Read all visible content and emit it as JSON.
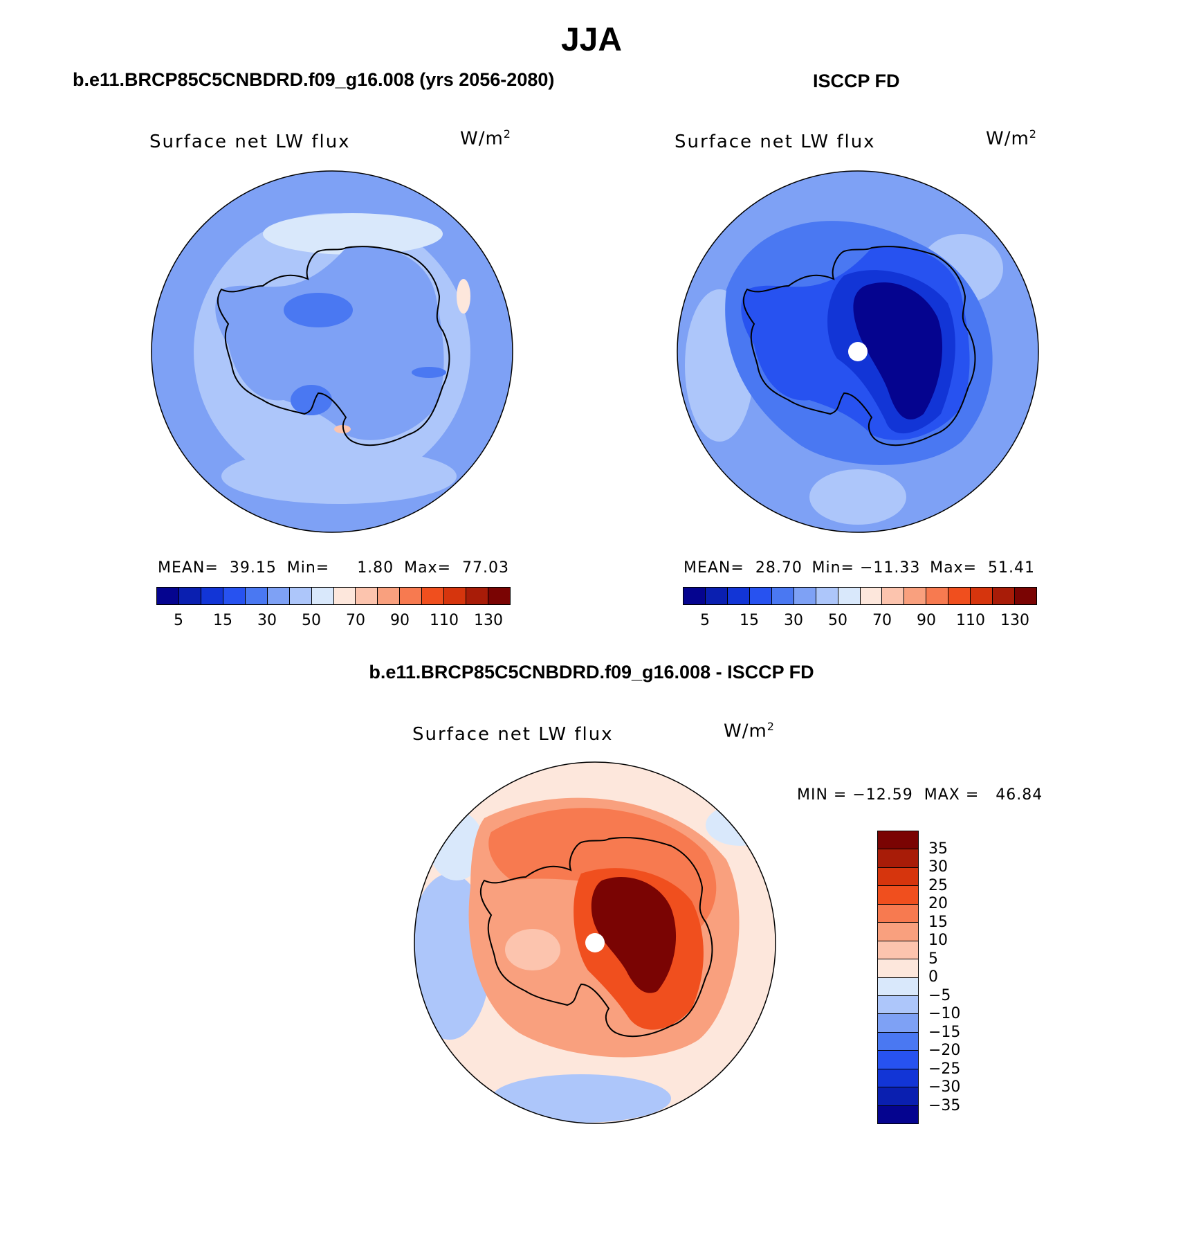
{
  "page_title": "JJA",
  "colors": {
    "scale16": [
      "#05048f",
      "#0a1fb0",
      "#1235d6",
      "#2752f0",
      "#4a78f2",
      "#7ea1f5",
      "#adc6fa",
      "#d9e8fb",
      "#fde7dc",
      "#fcc4ae",
      "#f9a07e",
      "#f77a50",
      "#f04f1e",
      "#d6350d",
      "#a81c08",
      "#7a0403"
    ],
    "diff16": [
      "#05048f",
      "#0a1fb0",
      "#1235d6",
      "#2752f0",
      "#4a78f2",
      "#7ea1f5",
      "#adc6fa",
      "#d9e8fb",
      "#fde7dc",
      "#fcc4ae",
      "#f9a07e",
      "#f77a50",
      "#f04f1e",
      "#d6350d",
      "#a81c08",
      "#7a0403"
    ],
    "coastline": "#000000"
  },
  "panels": [
    {
      "heading": "b.e11.BRCP85C5CNBDRD.f09_g16.008 (yrs 2056-2080)",
      "var_title": "Surface net LW flux",
      "units": "W/m",
      "units_sup": "2",
      "mean_label": "MEAN=",
      "mean": "39.15",
      "min_label": "Min=",
      "min": "1.80",
      "max_label": "Max=",
      "max": "77.03"
    },
    {
      "heading": "ISCCP FD",
      "var_title": "Surface net LW flux",
      "units": "W/m",
      "units_sup": "2",
      "mean_label": "MEAN=",
      "mean": "28.70",
      "min_label": "Min=",
      "min": "−11.33",
      "max_label": "Max=",
      "max": "51.41"
    }
  ],
  "diff_panel": {
    "heading": "b.e11.BRCP85C5CNBDRD.f09_g16.008 - ISCCP FD",
    "var_title": "Surface net LW flux",
    "units": "W/m",
    "units_sup": "2",
    "minmax_text": "MIN = −12.59  MAX =   46.84"
  },
  "chart_data": [
    {
      "type": "heatmap",
      "projection": "south-polar-stereographic",
      "title": "Surface net LW flux",
      "units": "W/m2",
      "colorbar_orientation": "horizontal",
      "colorbar_ticks": [
        "5",
        "15",
        "30",
        "50",
        "70",
        "90",
        "110",
        "130"
      ],
      "stats": {
        "mean": 39.15,
        "min": 1.8,
        "max": 77.03
      }
    },
    {
      "type": "heatmap",
      "projection": "south-polar-stereographic",
      "title": "Surface net LW flux",
      "units": "W/m2",
      "colorbar_orientation": "horizontal",
      "colorbar_ticks": [
        "5",
        "15",
        "30",
        "50",
        "70",
        "90",
        "110",
        "130"
      ],
      "stats": {
        "mean": 28.7,
        "min": -11.33,
        "max": 51.41
      }
    },
    {
      "type": "heatmap",
      "projection": "south-polar-stereographic",
      "title": "Surface net LW flux",
      "units": "W/m2",
      "colorbar_orientation": "vertical",
      "colorbar_ticks": [
        "35",
        "30",
        "25",
        "20",
        "15",
        "10",
        "5",
        "0",
        "−5",
        "−10",
        "−15",
        "−20",
        "−25",
        "−30",
        "−35"
      ],
      "stats": {
        "min": -12.59,
        "max": 46.84
      }
    }
  ]
}
